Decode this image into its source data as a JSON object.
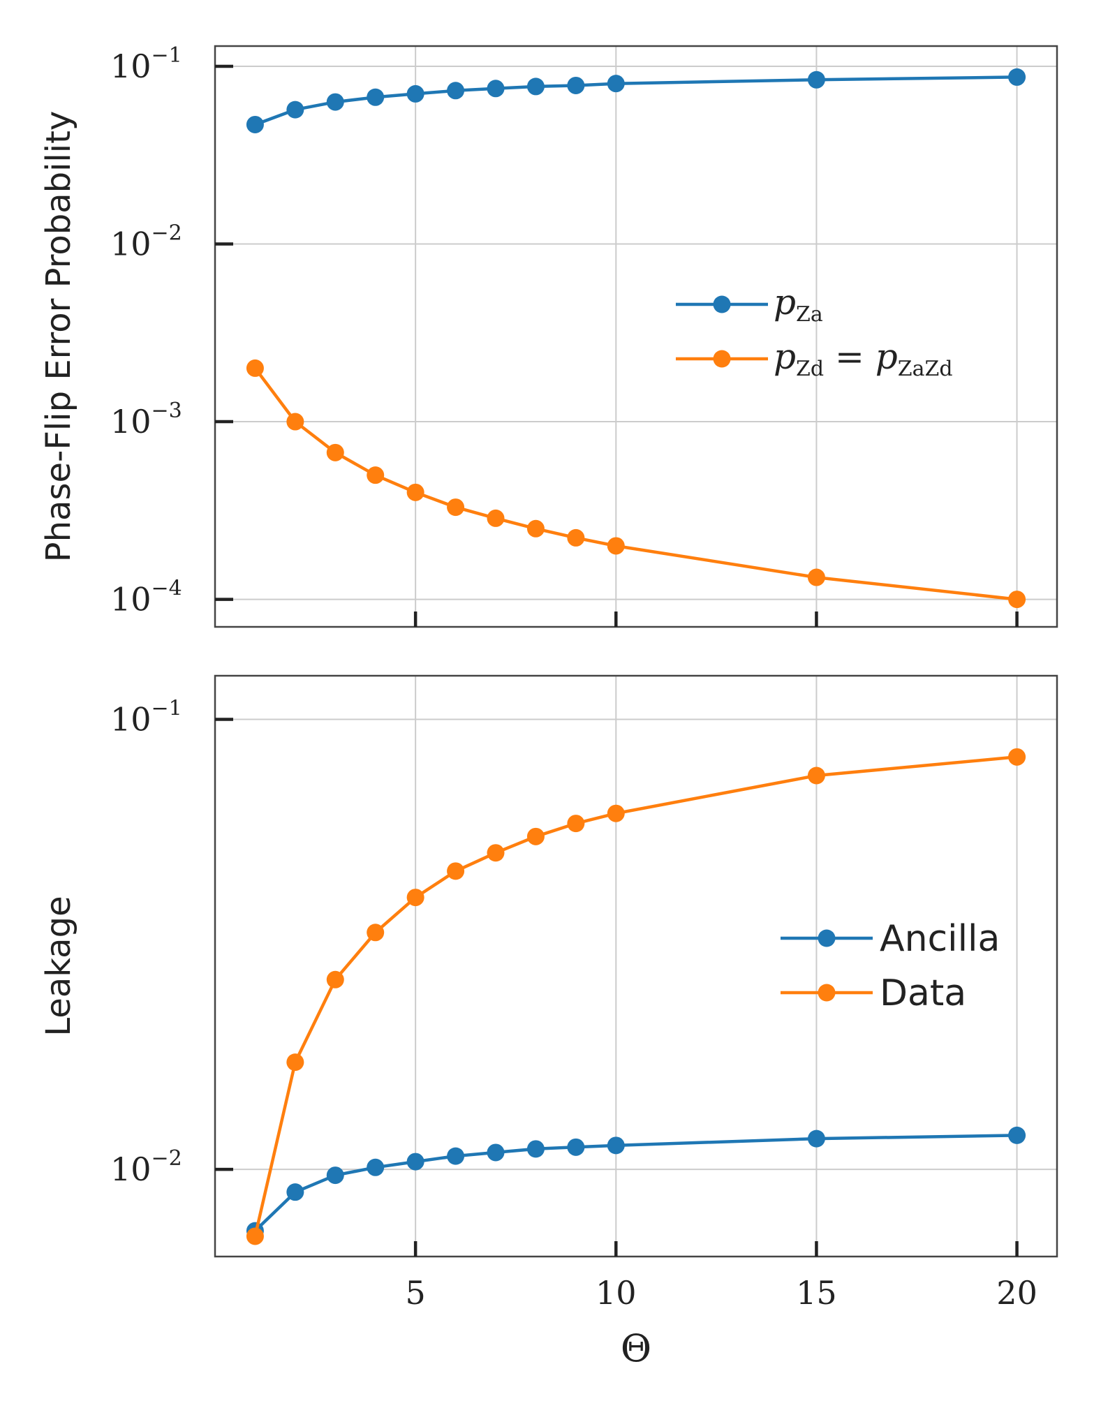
{
  "colors": {
    "blue": "#1f77b4",
    "orange": "#ff7f0e",
    "grid": "#cccccc",
    "spine": "#444444"
  },
  "chart_data": [
    {
      "type": "line",
      "yscale": "log",
      "ylabel": "Phase-Flip Error Probability",
      "xlabel": "",
      "ylim": [
        7e-05,
        0.13
      ],
      "xlim": [
        0,
        21
      ],
      "xticks": [
        5,
        10,
        15,
        20
      ],
      "yticks": [
        {
          "value": 0.1,
          "base": "10",
          "exp": "−1"
        },
        {
          "value": 0.01,
          "base": "10",
          "exp": "−2"
        },
        {
          "value": 0.001,
          "base": "10",
          "exp": "−3"
        },
        {
          "value": 0.0001,
          "base": "10",
          "exp": "−4"
        }
      ],
      "x": [
        1,
        2,
        3,
        4,
        5,
        6,
        7,
        8,
        9,
        10,
        15,
        20
      ],
      "series": [
        {
          "name": "p_Za",
          "color": "#1f77b4",
          "legend": {
            "main": "p",
            "sub": "Za"
          },
          "values": [
            0.047,
            0.057,
            0.063,
            0.067,
            0.07,
            0.073,
            0.075,
            0.077,
            0.078,
            0.08,
            0.084,
            0.087
          ]
        },
        {
          "name": "p_Zd = p_ZaZd",
          "color": "#ff7f0e",
          "legend": {
            "main": "p",
            "sub": "Zd",
            "eq": " = ",
            "main2": "p",
            "sub2": "ZaZd"
          },
          "values": [
            0.002,
            0.001,
            0.00067,
            0.0005,
            0.0004,
            0.00033,
            0.000286,
            0.00025,
            0.000222,
            0.0002,
            0.000133,
            0.0001
          ]
        }
      ],
      "legend_position": "center-right"
    },
    {
      "type": "line",
      "yscale": "log",
      "ylabel": "Leakage",
      "xlabel": "Θ",
      "ylim": [
        0.0064,
        0.125
      ],
      "xlim": [
        0,
        21
      ],
      "xticks": [
        5,
        10,
        15,
        20
      ],
      "yticks": [
        {
          "value": 0.1,
          "base": "10",
          "exp": "−1"
        },
        {
          "value": 0.01,
          "base": "10",
          "exp": "−2"
        }
      ],
      "x": [
        1,
        2,
        3,
        4,
        5,
        6,
        7,
        8,
        9,
        10,
        15,
        20
      ],
      "series": [
        {
          "name": "Ancilla",
          "color": "#1f77b4",
          "values": [
            0.0073,
            0.0089,
            0.0097,
            0.0101,
            0.0104,
            0.0107,
            0.0109,
            0.0111,
            0.0112,
            0.0113,
            0.0117,
            0.0119
          ]
        },
        {
          "name": "Data",
          "color": "#ff7f0e",
          "values": [
            0.0071,
            0.0173,
            0.0264,
            0.0336,
            0.0402,
            0.046,
            0.0505,
            0.0549,
            0.0587,
            0.0618,
            0.075,
            0.0825
          ]
        }
      ],
      "legend_position": "center-right"
    }
  ]
}
